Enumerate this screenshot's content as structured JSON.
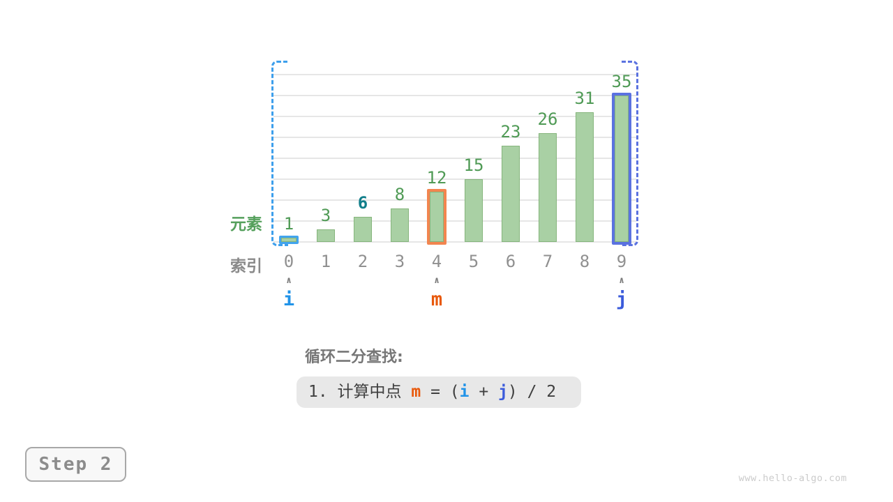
{
  "chart_data": {
    "type": "bar",
    "title": "",
    "categories": [
      "0",
      "1",
      "2",
      "3",
      "4",
      "5",
      "6",
      "7",
      "8",
      "9"
    ],
    "values": [
      1,
      3,
      6,
      8,
      12,
      15,
      23,
      26,
      31,
      35
    ],
    "ylabel": "元素",
    "xlabel": "索引",
    "ylim": [
      0,
      40
    ],
    "gridline_step": 5,
    "grid": "on",
    "legend": "none",
    "target_value": 6,
    "pointers": [
      {
        "label": "i",
        "index": 0
      },
      {
        "label": "m",
        "index": 4
      },
      {
        "label": "j",
        "index": 9
      }
    ],
    "search_range": {
      "from_index": 0,
      "to_index": 9
    },
    "caret_glyph": "∧"
  },
  "caption": {
    "title": "循环二分查找:",
    "formula": {
      "parts": [
        {
          "t": "1. 计算中点 ",
          "c": "text"
        },
        {
          "t": "m",
          "c": "m"
        },
        {
          "t": " = (",
          "c": "text"
        },
        {
          "t": "i",
          "c": "i"
        },
        {
          "t": " + ",
          "c": "text"
        },
        {
          "t": "j",
          "c": "j"
        },
        {
          "t": ") / 2",
          "c": "text"
        }
      ]
    }
  },
  "step_badge": "Step 2",
  "watermark": "www.hello-algo.com",
  "colors": {
    "bar_fill": "#A9D0A4",
    "bar_stroke": "#85B57C",
    "value_label": "#4F9A55",
    "target_label": "#117E8A",
    "index_label": "#909090",
    "axis_label_green": "#55A05C",
    "axis_label_gray": "#8A8A8A",
    "caret": "#7A7A7A",
    "pointer_i": "#2193E8",
    "pointer_m": "#E8590C",
    "pointer_j": "#3B5BDB",
    "bar_i_outline": "#42A4EE",
    "bar_m_outline": "#F2854F",
    "bar_j_outline": "#5B72E0",
    "bracket_left": "#3D9FEC",
    "bracket_right": "#5B72E0",
    "gridline": "#E6E6E6",
    "caption_title": "#767676",
    "formula_text": "#3F3F3F",
    "formula_bg": "#E8E8E8",
    "badge_text": "#8C8C8C",
    "badge_border": "#A8A8A8",
    "badge_bg": "#F8F8F8",
    "watermark": "#CBCBCB"
  }
}
